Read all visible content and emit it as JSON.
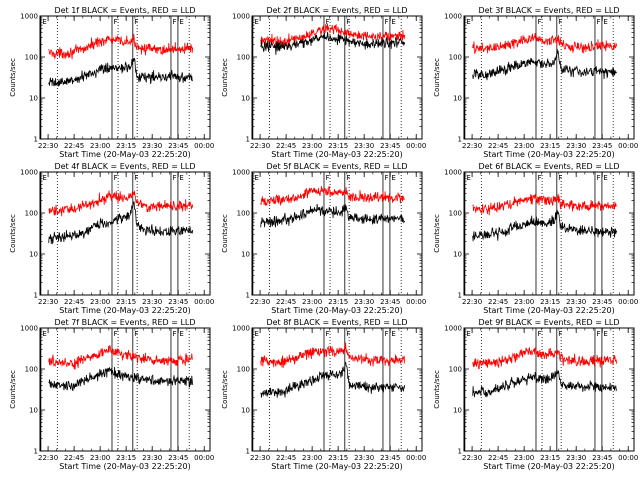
{
  "chart_data": {
    "type": "line",
    "shared": {
      "xlabel": "Start Time (20-May-03 22:25:20)",
      "ylabel": "Counts/sec",
      "x_tick_labels": [
        "22:30",
        "22:45",
        "23:00",
        "23:15",
        "23:30",
        "23:45",
        "00:00"
      ],
      "x_ticks_minutes_after_start": [
        4.67,
        19.67,
        34.67,
        49.67,
        64.67,
        79.67,
        94.67
      ],
      "xlim_minutes_after_start": [
        0,
        98
      ],
      "y_tick_labels": [
        "1",
        "10",
        "100",
        "1000"
      ],
      "ylim": [
        1,
        1000
      ],
      "y_scale": "log",
      "series_colors": {
        "events": "#000000",
        "lld": "#ff0000"
      },
      "flag_labels": [
        "E",
        "F"
      ],
      "grid": false,
      "legend": "none"
    },
    "panels": [
      {
        "title": "Det 1f BLACK = Events, RED = LLD",
        "flags": [
          {
            "label": "E",
            "t": 0.5
          },
          {
            "label": "F",
            "t": 41.5
          },
          {
            "label": "F",
            "t": 53.5
          },
          {
            "label": "F",
            "t": 75.5
          },
          {
            "label": "E",
            "t": 79.5
          }
        ],
        "dotted_lines_t": [
          10,
          45,
          56,
          86
        ],
        "events": {
          "t": [
            5,
            10,
            15,
            20,
            25,
            30,
            35,
            40,
            44,
            48,
            52,
            54,
            56,
            60,
            65,
            70,
            75,
            80,
            88
          ],
          "y": [
            23,
            24,
            25,
            27,
            32,
            40,
            52,
            58,
            55,
            52,
            50,
            110,
            35,
            34,
            33,
            33,
            34,
            33,
            32
          ]
        },
        "lld": {
          "t": [
            5,
            10,
            15,
            20,
            25,
            30,
            35,
            40,
            44,
            48,
            52,
            54,
            56,
            60,
            65,
            70,
            75,
            80,
            88
          ],
          "y": [
            130,
            120,
            125,
            135,
            155,
            200,
            250,
            270,
            250,
            235,
            230,
            250,
            185,
            165,
            150,
            148,
            155,
            160,
            165
          ]
        }
      },
      {
        "title": "Det 2f BLACK = Events, RED = LLD",
        "flags": [
          {
            "label": "E",
            "t": 0.5
          },
          {
            "label": "F",
            "t": 41.5
          },
          {
            "label": "F",
            "t": 53.5
          },
          {
            "label": "F",
            "t": 75.5
          },
          {
            "label": "E",
            "t": 79.5
          }
        ],
        "dotted_lines_t": [
          10,
          45,
          56,
          86
        ],
        "events": {
          "t": [
            5,
            10,
            15,
            20,
            25,
            30,
            35,
            40,
            44,
            48,
            52,
            56,
            60,
            65,
            70,
            75,
            80,
            88
          ],
          "y": [
            185,
            175,
            170,
            180,
            200,
            230,
            270,
            300,
            310,
            290,
            265,
            240,
            220,
            210,
            205,
            210,
            215,
            220
          ]
        },
        "lld": {
          "t": [
            5,
            10,
            15,
            20,
            25,
            30,
            35,
            40,
            44,
            48,
            52,
            56,
            60,
            65,
            70,
            75,
            80,
            88
          ],
          "y": [
            280,
            250,
            230,
            240,
            270,
            320,
            400,
            470,
            500,
            470,
            420,
            370,
            330,
            310,
            300,
            305,
            315,
            320
          ]
        }
      },
      {
        "title": "Det 3f BLACK = Events, RED = LLD",
        "flags": [
          {
            "label": "E",
            "t": 0.5
          },
          {
            "label": "F",
            "t": 41.5
          },
          {
            "label": "F",
            "t": 53.5
          },
          {
            "label": "F",
            "t": 75.5
          },
          {
            "label": "E",
            "t": 79.5
          }
        ],
        "dotted_lines_t": [
          10,
          45,
          56,
          86
        ],
        "events": {
          "t": [
            5,
            10,
            15,
            20,
            25,
            30,
            35,
            40,
            44,
            48,
            52,
            54,
            56,
            60,
            65,
            70,
            75,
            80,
            88
          ],
          "y": [
            38,
            38,
            40,
            45,
            52,
            60,
            70,
            78,
            72,
            68,
            75,
            140,
            50,
            47,
            45,
            44,
            45,
            44,
            43
          ]
        },
        "lld": {
          "t": [
            5,
            10,
            15,
            20,
            25,
            30,
            35,
            40,
            44,
            48,
            52,
            54,
            56,
            60,
            65,
            70,
            75,
            80,
            88
          ],
          "y": [
            165,
            160,
            165,
            175,
            195,
            230,
            270,
            280,
            260,
            245,
            250,
            270,
            200,
            185,
            175,
            175,
            180,
            185,
            190
          ]
        }
      },
      {
        "title": "Det 4f BLACK = Events, RED = LLD",
        "flags": [
          {
            "label": "E",
            "t": 0.5
          },
          {
            "label": "F",
            "t": 41.5
          },
          {
            "label": "F",
            "t": 53.5
          },
          {
            "label": "F",
            "t": 75.5
          },
          {
            "label": "E",
            "t": 79.5
          }
        ],
        "dotted_lines_t": [
          10,
          45,
          56,
          86
        ],
        "events": {
          "t": [
            5,
            10,
            15,
            20,
            25,
            30,
            35,
            40,
            44,
            48,
            52,
            54,
            56,
            60,
            65,
            70,
            75,
            80,
            88
          ],
          "y": [
            25,
            25,
            27,
            28,
            33,
            42,
            55,
            62,
            70,
            80,
            90,
            200,
            45,
            38,
            36,
            35,
            36,
            35,
            35
          ]
        },
        "lld": {
          "t": [
            5,
            10,
            15,
            20,
            25,
            30,
            35,
            40,
            44,
            48,
            52,
            54,
            56,
            60,
            65,
            70,
            75,
            80,
            88
          ],
          "y": [
            110,
            110,
            115,
            125,
            145,
            180,
            220,
            250,
            240,
            245,
            250,
            320,
            180,
            155,
            145,
            145,
            150,
            150,
            155
          ]
        }
      },
      {
        "title": "Det 5f BLACK = Events, RED = LLD",
        "flags": [
          {
            "label": "E",
            "t": 0.5
          },
          {
            "label": "F",
            "t": 41.5
          },
          {
            "label": "F",
            "t": 53.5
          },
          {
            "label": "F",
            "t": 75.5
          },
          {
            "label": "E",
            "t": 79.5
          }
        ],
        "dotted_lines_t": [
          10,
          45,
          56,
          86
        ],
        "events": {
          "t": [
            5,
            10,
            15,
            20,
            25,
            30,
            35,
            40,
            44,
            48,
            52,
            54,
            56,
            60,
            65,
            70,
            75,
            80,
            88
          ],
          "y": [
            60,
            62,
            65,
            70,
            80,
            95,
            115,
            125,
            115,
            105,
            100,
            150,
            80,
            75,
            72,
            70,
            72,
            72,
            72
          ]
        },
        "lld": {
          "t": [
            5,
            10,
            15,
            20,
            25,
            30,
            35,
            40,
            44,
            48,
            52,
            54,
            56,
            60,
            65,
            70,
            75,
            80,
            88
          ],
          "y": [
            210,
            200,
            200,
            215,
            240,
            280,
            330,
            360,
            340,
            320,
            310,
            360,
            260,
            240,
            230,
            230,
            235,
            240,
            245
          ]
        }
      },
      {
        "title": "Det 6f BLACK = Events, RED = LLD",
        "flags": [
          {
            "label": "E",
            "t": 0.5
          },
          {
            "label": "F",
            "t": 41.5
          },
          {
            "label": "F",
            "t": 53.5
          },
          {
            "label": "F",
            "t": 75.5
          },
          {
            "label": "E",
            "t": 79.5
          }
        ],
        "dotted_lines_t": [
          10,
          45,
          56,
          86
        ],
        "events": {
          "t": [
            5,
            10,
            15,
            20,
            25,
            30,
            35,
            40,
            44,
            48,
            52,
            54,
            56,
            60,
            65,
            70,
            75,
            80,
            88
          ],
          "y": [
            27,
            28,
            30,
            32,
            38,
            45,
            55,
            60,
            58,
            55,
            60,
            110,
            45,
            40,
            38,
            36,
            37,
            36,
            35
          ]
        },
        "lld": {
          "t": [
            5,
            10,
            15,
            20,
            25,
            30,
            35,
            40,
            44,
            48,
            52,
            54,
            56,
            60,
            65,
            70,
            75,
            80,
            88
          ],
          "y": [
            125,
            120,
            125,
            135,
            155,
            185,
            215,
            230,
            210,
            200,
            210,
            250,
            170,
            150,
            145,
            145,
            150,
            150,
            155
          ]
        }
      },
      {
        "title": "Det 7f BLACK = Events, RED = LLD",
        "flags": [
          {
            "label": "E",
            "t": 0.5
          },
          {
            "label": "F",
            "t": 41.5
          },
          {
            "label": "F",
            "t": 53.5
          },
          {
            "label": "F",
            "t": 75.5
          },
          {
            "label": "E",
            "t": 79.5
          }
        ],
        "dotted_lines_t": [
          10,
          45,
          56,
          86
        ],
        "events": {
          "t": [
            5,
            10,
            15,
            20,
            25,
            30,
            35,
            40,
            44,
            48,
            52,
            56,
            60,
            65,
            70,
            75,
            80,
            88
          ],
          "y": [
            45,
            42,
            40,
            42,
            50,
            60,
            75,
            85,
            80,
            70,
            65,
            60,
            55,
            52,
            50,
            50,
            52,
            53
          ]
        },
        "lld": {
          "t": [
            5,
            10,
            15,
            20,
            25,
            30,
            35,
            40,
            44,
            48,
            52,
            56,
            60,
            65,
            70,
            75,
            80,
            88
          ],
          "y": [
            160,
            145,
            135,
            140,
            165,
            200,
            245,
            270,
            250,
            225,
            205,
            190,
            175,
            165,
            160,
            160,
            165,
            170
          ]
        }
      },
      {
        "title": "Det 8f BLACK = Events, RED = LLD",
        "flags": [
          {
            "label": "E",
            "t": 0.5
          },
          {
            "label": "F",
            "t": 41.5
          },
          {
            "label": "F",
            "t": 53.5
          },
          {
            "label": "F",
            "t": 75.5
          },
          {
            "label": "E",
            "t": 79.5
          }
        ],
        "dotted_lines_t": [
          10,
          45,
          56,
          86
        ],
        "events": {
          "t": [
            5,
            10,
            15,
            20,
            25,
            30,
            35,
            40,
            44,
            48,
            52,
            54,
            56,
            60,
            65,
            70,
            75,
            80,
            88
          ],
          "y": [
            25,
            26,
            27,
            30,
            35,
            42,
            55,
            65,
            70,
            75,
            80,
            140,
            45,
            40,
            38,
            36,
            37,
            36,
            36
          ]
        },
        "lld": {
          "t": [
            5,
            10,
            15,
            20,
            25,
            30,
            35,
            40,
            44,
            48,
            52,
            54,
            56,
            60,
            65,
            70,
            75,
            80,
            88
          ],
          "y": [
            160,
            150,
            150,
            160,
            180,
            220,
            260,
            275,
            270,
            265,
            275,
            330,
            200,
            175,
            165,
            165,
            170,
            170,
            175
          ]
        }
      },
      {
        "title": "Det 9f BLACK = Events, RED = LLD",
        "flags": [
          {
            "label": "E",
            "t": 0.5
          },
          {
            "label": "F",
            "t": 41.5
          },
          {
            "label": "F",
            "t": 53.5
          },
          {
            "label": "F",
            "t": 75.5
          },
          {
            "label": "E",
            "t": 79.5
          }
        ],
        "dotted_lines_t": [
          10,
          45,
          56,
          86
        ],
        "events": {
          "t": [
            5,
            10,
            15,
            20,
            25,
            30,
            35,
            40,
            44,
            48,
            52,
            54,
            56,
            60,
            65,
            70,
            75,
            80,
            88
          ],
          "y": [
            28,
            28,
            30,
            33,
            40,
            48,
            58,
            62,
            60,
            58,
            62,
            90,
            42,
            38,
            36,
            35,
            36,
            35,
            35
          ]
        },
        "lld": {
          "t": [
            5,
            10,
            15,
            20,
            25,
            30,
            35,
            40,
            44,
            48,
            52,
            54,
            56,
            60,
            65,
            70,
            75,
            80,
            88
          ],
          "y": [
            140,
            135,
            140,
            150,
            170,
            205,
            245,
            260,
            240,
            225,
            235,
            270,
            180,
            160,
            155,
            155,
            160,
            160,
            165
          ]
        }
      }
    ]
  }
}
